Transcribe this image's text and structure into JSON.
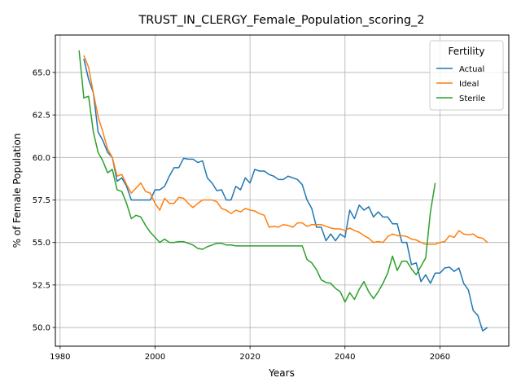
{
  "chart_data": {
    "type": "line",
    "title": "TRUST_IN_CLERGY_Female_Population_scoring_2",
    "xlabel": "Years",
    "ylabel": "% of Female Population",
    "xlim": [
      1979,
      2074.5
    ],
    "ylim": [
      48.9,
      67.2
    ],
    "xticks": [
      1980,
      2000,
      2020,
      2040,
      2060
    ],
    "xtick_labels": [
      "1980",
      "2000",
      "2020",
      "2040",
      "2060"
    ],
    "yticks": [
      50.0,
      52.5,
      55.0,
      57.5,
      60.0,
      62.5,
      65.0
    ],
    "ytick_labels": [
      "50.0",
      "52.5",
      "55.0",
      "57.5",
      "60.0",
      "62.5",
      "65.0"
    ],
    "grid": true,
    "legend": {
      "title": "Fertility",
      "placement": "top-right"
    },
    "series": [
      {
        "name": "Actual",
        "color": "#1f77b4",
        "x": [
          1985,
          1986,
          1987,
          1988,
          1989,
          1990,
          1991,
          1992,
          1993,
          1994,
          1995,
          1996,
          1997,
          1998,
          1999,
          2000,
          2001,
          2002,
          2003,
          2004,
          2005,
          2006,
          2007,
          2008,
          2009,
          2010,
          2011,
          2012,
          2013,
          2014,
          2015,
          2016,
          2017,
          2018,
          2019,
          2020,
          2021,
          2022,
          2023,
          2024,
          2025,
          2026,
          2027,
          2028,
          2029,
          2030,
          2031,
          2032,
          2033,
          2034,
          2035,
          2036,
          2037,
          2038,
          2039,
          2040,
          2041,
          2042,
          2043,
          2044,
          2045,
          2046,
          2047,
          2048,
          2049,
          2050,
          2051,
          2052,
          2053,
          2054,
          2055,
          2056,
          2057,
          2058,
          2059,
          2060,
          2061,
          2062,
          2063,
          2064,
          2065,
          2066,
          2067,
          2068,
          2069,
          2070
        ],
        "values": [
          65.8,
          64.6,
          63.8,
          61.5,
          61.0,
          60.3,
          60.0,
          58.6,
          58.8,
          58.3,
          57.5,
          57.5,
          57.5,
          57.5,
          57.5,
          58.1,
          58.1,
          58.3,
          58.9,
          59.4,
          59.4,
          59.95,
          59.9,
          59.9,
          59.7,
          59.8,
          58.8,
          58.5,
          58.05,
          58.1,
          57.5,
          57.5,
          58.3,
          58.1,
          58.8,
          58.5,
          59.3,
          59.2,
          59.2,
          59.0,
          58.9,
          58.7,
          58.7,
          58.9,
          58.8,
          58.7,
          58.4,
          57.5,
          57.0,
          55.9,
          55.9,
          55.1,
          55.5,
          55.1,
          55.5,
          55.3,
          56.9,
          56.4,
          57.2,
          56.9,
          57.1,
          56.5,
          56.8,
          56.5,
          56.5,
          56.1,
          56.1,
          55.0,
          55.0,
          53.7,
          53.8,
          52.7,
          53.1,
          52.6,
          53.2,
          53.2,
          53.5,
          53.55,
          53.3,
          53.5,
          52.6,
          52.2,
          51.0,
          50.7,
          49.8,
          50.0
        ]
      },
      {
        "name": "Ideal",
        "color": "#ff7f0e",
        "x": [
          1985,
          1986,
          1987,
          1988,
          1989,
          1990,
          1991,
          1992,
          1993,
          1994,
          1995,
          1996,
          1997,
          1998,
          1999,
          2000,
          2001,
          2002,
          2003,
          2004,
          2005,
          2006,
          2007,
          2008,
          2009,
          2010,
          2011,
          2012,
          2013,
          2014,
          2015,
          2016,
          2017,
          2018,
          2019,
          2020,
          2021,
          2022,
          2023,
          2024,
          2025,
          2026,
          2027,
          2028,
          2029,
          2030,
          2031,
          2032,
          2033,
          2034,
          2035,
          2036,
          2037,
          2038,
          2039,
          2040,
          2041,
          2042,
          2043,
          2044,
          2045,
          2046,
          2047,
          2048,
          2049,
          2050,
          2051,
          2052,
          2053,
          2054,
          2055,
          2056,
          2057,
          2058,
          2059,
          2060,
          2061,
          2062,
          2063,
          2064,
          2065,
          2066,
          2067,
          2068,
          2069,
          2070
        ],
        "values": [
          66.0,
          65.3,
          63.8,
          62.4,
          61.5,
          60.5,
          60.0,
          58.9,
          59.0,
          58.4,
          57.9,
          58.2,
          58.5,
          58.0,
          57.9,
          57.3,
          56.9,
          57.6,
          57.3,
          57.3,
          57.65,
          57.6,
          57.3,
          57.05,
          57.3,
          57.5,
          57.5,
          57.5,
          57.4,
          57.0,
          56.9,
          56.7,
          56.9,
          56.8,
          57.0,
          56.9,
          56.85,
          56.7,
          56.6,
          55.9,
          55.95,
          55.9,
          56.05,
          56.0,
          55.9,
          56.15,
          56.15,
          55.95,
          56.05,
          56.05,
          56.05,
          55.95,
          55.85,
          55.8,
          55.8,
          55.7,
          55.85,
          55.7,
          55.6,
          55.4,
          55.25,
          55.0,
          55.05,
          55.0,
          55.35,
          55.5,
          55.4,
          55.4,
          55.35,
          55.2,
          55.15,
          55.0,
          54.9,
          54.9,
          54.9,
          55.0,
          55.05,
          55.4,
          55.3,
          55.7,
          55.5,
          55.45,
          55.5,
          55.3,
          55.25,
          55.0
        ]
      },
      {
        "name": "Sterile",
        "color": "#2ca02c",
        "x": [
          1984,
          1985,
          1986,
          1987,
          1988,
          1989,
          1990,
          1991,
          1992,
          1993,
          1994,
          1995,
          1996,
          1997,
          1998,
          1999,
          2000,
          2001,
          2002,
          2003,
          2004,
          2005,
          2006,
          2007,
          2008,
          2009,
          2010,
          2011,
          2012,
          2013,
          2014,
          2015,
          2016,
          2017,
          2018,
          2019,
          2020,
          2021,
          2022,
          2023,
          2024,
          2025,
          2026,
          2027,
          2028,
          2029,
          2030,
          2031,
          2032,
          2033,
          2034,
          2035,
          2036,
          2037,
          2038,
          2039,
          2040,
          2041,
          2042,
          2043,
          2044,
          2045,
          2046,
          2047,
          2048,
          2049,
          2050,
          2051,
          2052,
          2053,
          2054,
          2055,
          2056,
          2057,
          2058,
          2059
        ],
        "values": [
          66.3,
          63.5,
          63.6,
          61.5,
          60.3,
          59.8,
          59.1,
          59.3,
          58.1,
          58.0,
          57.3,
          56.4,
          56.6,
          56.5,
          56.0,
          55.6,
          55.3,
          55.0,
          55.2,
          55.0,
          55.0,
          55.05,
          55.05,
          54.95,
          54.85,
          54.65,
          54.6,
          54.75,
          54.85,
          54.95,
          54.95,
          54.85,
          54.85,
          54.8,
          54.8,
          54.8,
          54.8,
          54.8,
          54.8,
          54.8,
          54.8,
          54.8,
          54.8,
          54.8,
          54.8,
          54.8,
          54.8,
          54.8,
          54.0,
          53.8,
          53.4,
          52.8,
          52.65,
          52.6,
          52.3,
          52.1,
          51.5,
          52.05,
          51.65,
          52.25,
          52.7,
          52.1,
          51.7,
          52.1,
          52.6,
          53.2,
          54.2,
          53.35,
          53.9,
          53.9,
          53.45,
          53.1,
          53.6,
          54.1,
          56.8,
          58.5
        ]
      }
    ]
  }
}
